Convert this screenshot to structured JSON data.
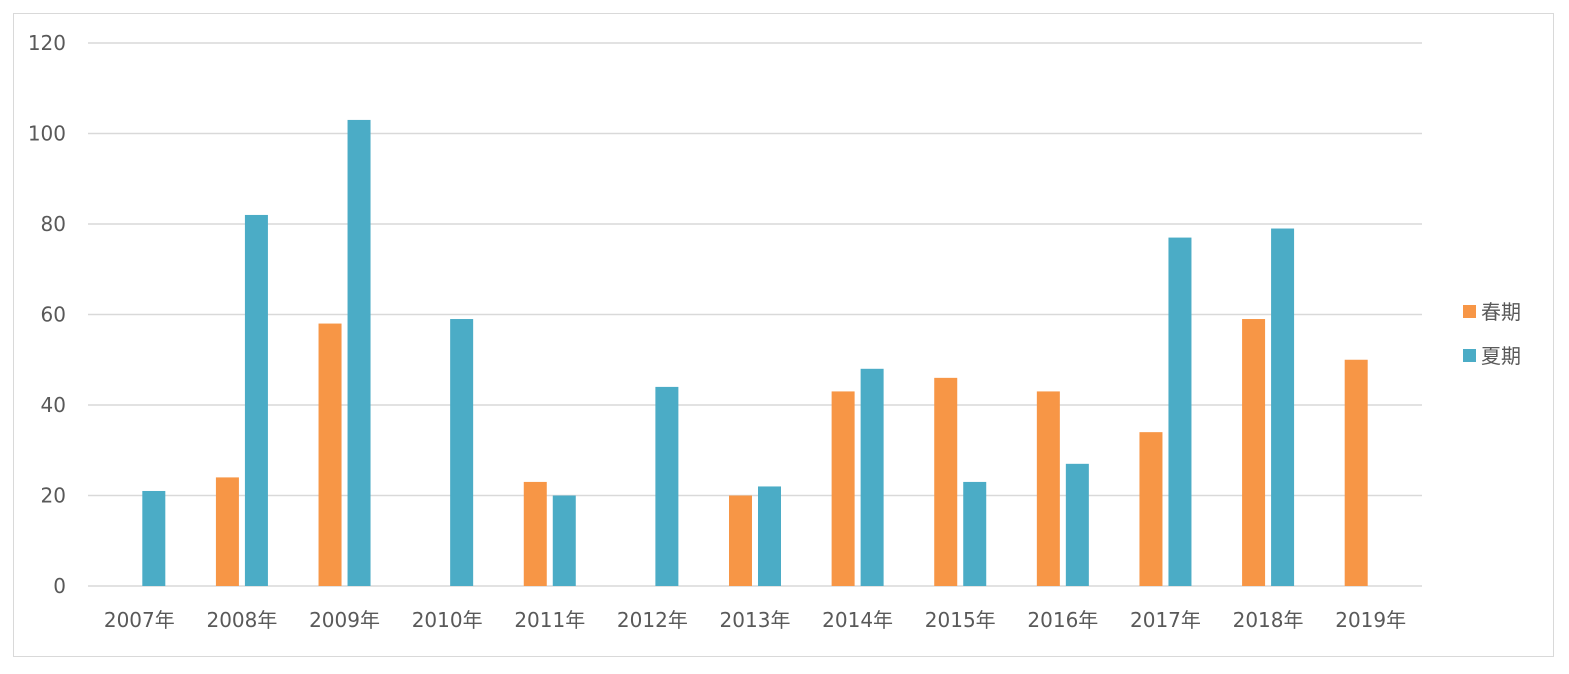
{
  "chart_data": {
    "type": "bar",
    "categories": [
      "2007年",
      "2008年",
      "2009年",
      "2010年",
      "2011年",
      "2012年",
      "2013年",
      "2014年",
      "2015年",
      "2016年",
      "2017年",
      "2018年",
      "2019年"
    ],
    "series": [
      {
        "name": "春期",
        "color": "#F79646",
        "values": [
          null,
          24,
          58,
          null,
          23,
          null,
          20,
          43,
          46,
          43,
          34,
          59,
          50
        ]
      },
      {
        "name": "夏期",
        "color": "#4BACC6",
        "values": [
          21,
          82,
          103,
          59,
          20,
          44,
          22,
          48,
          23,
          27,
          77,
          79,
          null
        ]
      }
    ],
    "ylim": [
      0,
      120
    ],
    "yticks": [
      0,
      20,
      40,
      60,
      80,
      100,
      120
    ],
    "title": "",
    "xlabel": "",
    "ylabel": "",
    "grid": true,
    "legend_position": "right"
  }
}
